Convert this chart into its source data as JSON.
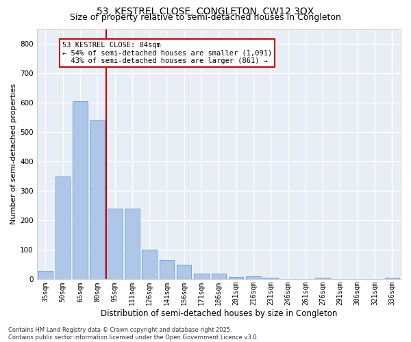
{
  "title1": "53, KESTREL CLOSE, CONGLETON, CW12 3QX",
  "title2": "Size of property relative to semi-detached houses in Congleton",
  "xlabel": "Distribution of semi-detached houses by size in Congleton",
  "ylabel": "Number of semi-detached properties",
  "categories": [
    "35sqm",
    "50sqm",
    "65sqm",
    "80sqm",
    "95sqm",
    "111sqm",
    "126sqm",
    "141sqm",
    "156sqm",
    "171sqm",
    "186sqm",
    "201sqm",
    "216sqm",
    "231sqm",
    "246sqm",
    "261sqm",
    "276sqm",
    "291sqm",
    "306sqm",
    "321sqm",
    "336sqm"
  ],
  "values": [
    30,
    350,
    605,
    540,
    240,
    240,
    100,
    65,
    50,
    20,
    20,
    8,
    10,
    5,
    0,
    0,
    5,
    0,
    0,
    0,
    5
  ],
  "bar_color": "#aec6e8",
  "bar_edge_color": "#5a9fd4",
  "vline_index": 3,
  "vline_color": "#cc0000",
  "annotation_line1": "53 KESTREL CLOSE: 84sqm",
  "annotation_line2": "← 54% of semi-detached houses are smaller (1,091)",
  "annotation_line3": "  43% of semi-detached houses are larger (861) →",
  "annotation_box_color": "#ffffff",
  "annotation_box_edge": "#cc0000",
  "ylim": [
    0,
    850
  ],
  "yticks": [
    0,
    100,
    200,
    300,
    400,
    500,
    600,
    700,
    800
  ],
  "bg_color": "#e8eef5",
  "grid_color": "#ffffff",
  "footer": "Contains HM Land Registry data © Crown copyright and database right 2025.\nContains public sector information licensed under the Open Government Licence v3.0.",
  "title1_fontsize": 10,
  "title2_fontsize": 9,
  "tick_fontsize": 7,
  "ylabel_fontsize": 8,
  "xlabel_fontsize": 8.5,
  "footer_fontsize": 6,
  "annotation_fontsize": 7.5
}
